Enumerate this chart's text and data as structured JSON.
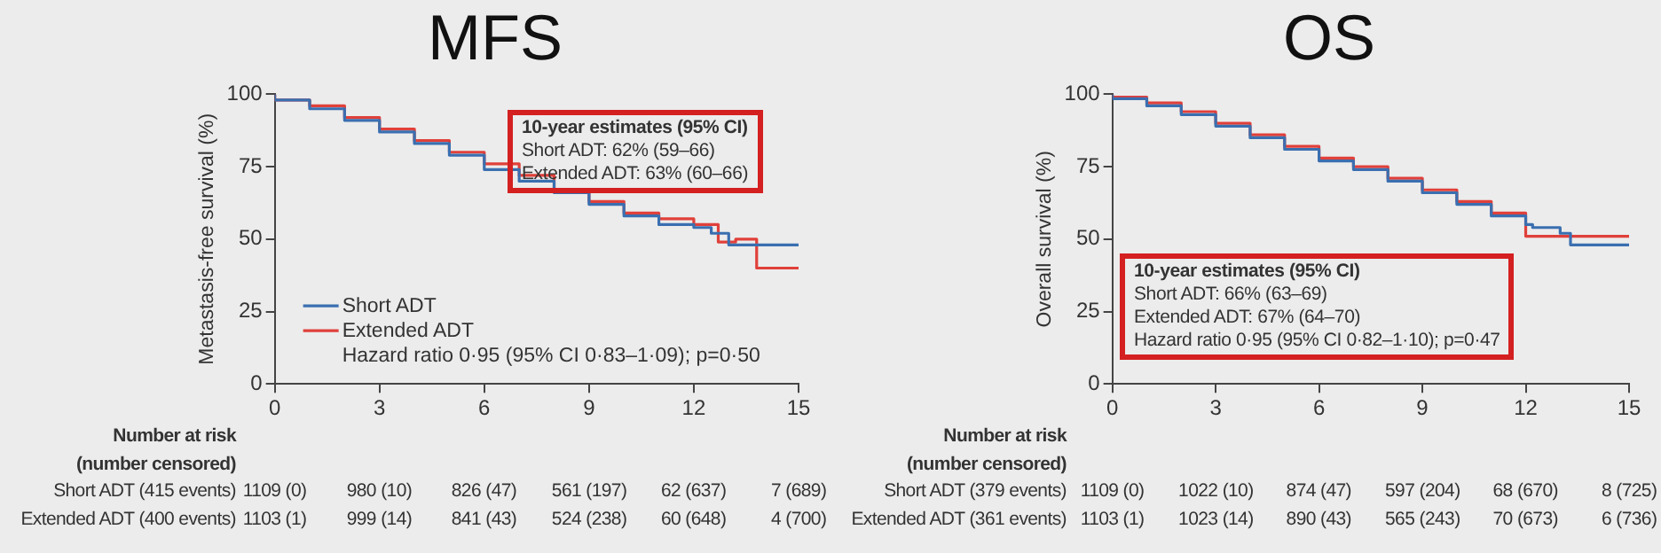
{
  "chart_data": [
    {
      "type": "step",
      "title": "MFS",
      "ylabel": "Metastasis-free survival (%)",
      "xlim": [
        0,
        15
      ],
      "xticks": [
        0,
        3,
        6,
        9,
        12,
        15
      ],
      "ylim": [
        0,
        100
      ],
      "yticks": [
        0,
        25,
        50,
        75,
        100
      ],
      "legend": "bottom left",
      "marker": "none",
      "series": [
        {
          "name": "Short ADT",
          "color": "#3a6fb0",
          "x": [
            0,
            1,
            2,
            3,
            4,
            5,
            6,
            7,
            8,
            9,
            10,
            11,
            12,
            12.5,
            13,
            13.3,
            14,
            15
          ],
          "values": [
            100,
            98,
            95,
            91,
            87,
            83,
            79,
            74,
            70,
            66,
            62,
            58,
            55,
            54,
            52,
            48,
            48,
            48
          ]
        },
        {
          "name": "Extended ADT",
          "color": "#e0403a",
          "x": [
            0,
            1,
            2,
            3,
            4,
            5,
            6,
            7,
            8,
            9,
            10,
            11,
            12,
            12.7,
            13.2,
            13.8,
            14.3,
            15
          ],
          "values": [
            100,
            98,
            96,
            92,
            88,
            84,
            80,
            76,
            72,
            67,
            63,
            59,
            57,
            55,
            49,
            50,
            40,
            40
          ]
        }
      ],
      "annotations": [
        "10-year estimates (95% CI)",
        "Short ADT: 62% (59–66)",
        "Extended ADT: 63% (60–66)",
        "Hazard ratio 0·95 (95% CI 0·83–1·09); p=0·50",
        "Number at risk",
        "(number censored)",
        "Short ADT (415 events)",
        "1109 (0)",
        "980 (10)",
        "826 (47)",
        "561 (197)",
        "62 (637)",
        "7 (689)",
        "Extended ADT (400 events)",
        "1103 (1)",
        "999 (14)",
        "841 (43)",
        "524 (238)",
        "60 (648)",
        "4 (700)"
      ]
    },
    {
      "type": "step",
      "title": "OS",
      "ylabel": "Overall survival (%)",
      "xlim": [
        0,
        15
      ],
      "xticks": [
        0,
        3,
        6,
        9,
        12,
        15
      ],
      "ylim": [
        0,
        100
      ],
      "yticks": [
        0,
        25,
        50,
        75,
        100
      ],
      "marker": "none",
      "series": [
        {
          "color": "#3a6fb0",
          "x": [
            0,
            1,
            2,
            3,
            4,
            5,
            6,
            7,
            8,
            9,
            10,
            11,
            12,
            12.2,
            13,
            13.3,
            13.6,
            15
          ],
          "values": [
            100,
            98.5,
            96,
            93,
            89,
            85,
            81,
            77,
            74,
            70,
            66,
            62,
            58,
            55,
            54,
            52,
            48,
            48
          ]
        },
        {
          "color": "#e0403a",
          "x": [
            0,
            1,
            2,
            3,
            4,
            5,
            6,
            7,
            8,
            9,
            10,
            11,
            12,
            14.4,
            15
          ],
          "values": [
            100,
            99,
            97,
            94,
            90,
            86,
            82,
            78,
            75,
            71,
            67,
            63,
            59,
            51,
            51
          ]
        }
      ],
      "annotations": [
        "10-year estimates (95% CI)",
        "Short ADT: 66% (63–69)",
        "Extended ADT: 67% (64–70)",
        "Hazard ratio 0·95 (95% CI 0·82–1·10); p=0·47",
        "Number at risk",
        "(number censored)",
        "Short ADT (379 events)",
        "1109 (0)",
        "1022 (10)",
        "874 (47)",
        "597 (204)",
        "68 (670)",
        "8 (725)",
        "Extended ADT (361 events)",
        "1103 (1)",
        "1023 (14)",
        "890 (43)",
        "565 (243)",
        "70 (673)",
        "6 (736)"
      ]
    }
  ]
}
